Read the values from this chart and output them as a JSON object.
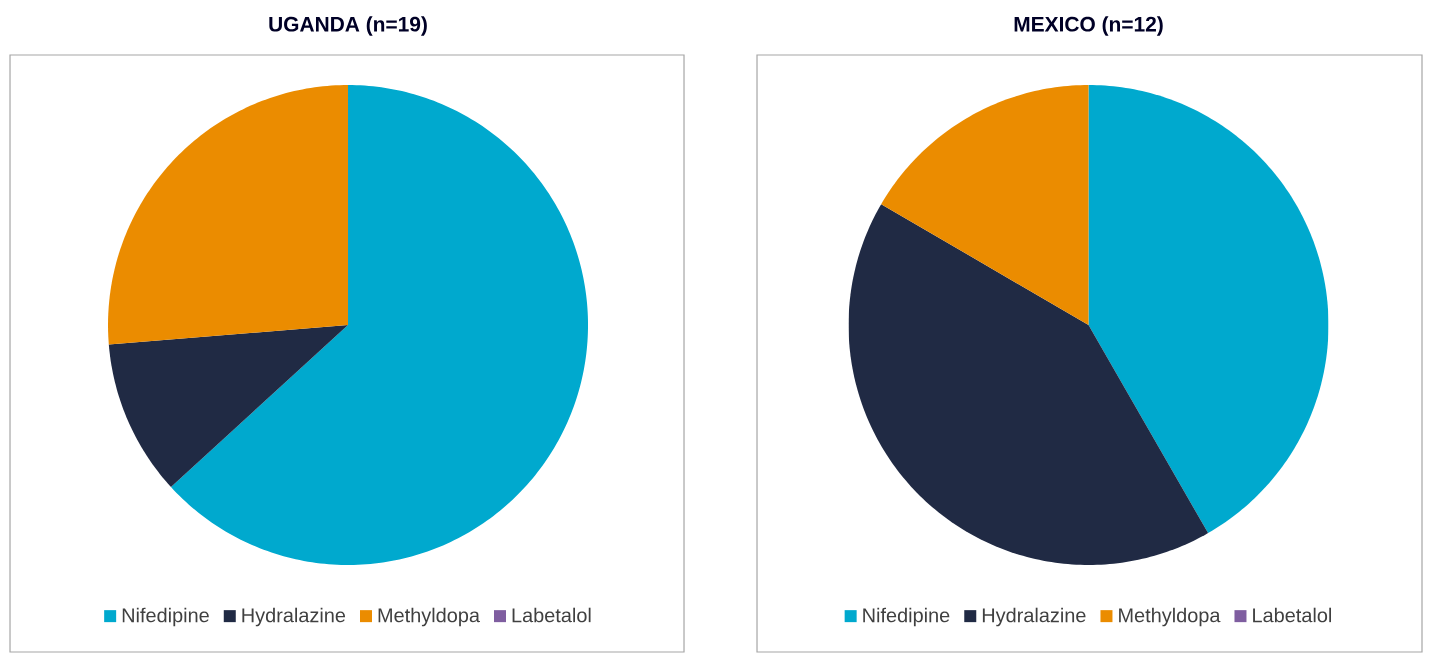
{
  "chart_data": [
    {
      "type": "pie",
      "title": "UGANDA (n=19)",
      "categories": [
        "Nifedipine",
        "Hydralazine",
        "Methyldopa",
        "Labetalol"
      ],
      "values": [
        63.2,
        10.5,
        26.3,
        0
      ],
      "colors": [
        "#00a9ce",
        "#202a44",
        "#eb8c00",
        "#7f5ea0"
      ],
      "legend": "bottom"
    },
    {
      "type": "pie",
      "title": "MEXICO (n=12)",
      "categories": [
        "Nifedipine",
        "Hydralazine",
        "Methyldopa",
        "Labetalol"
      ],
      "values": [
        41.7,
        41.7,
        16.6,
        0
      ],
      "colors": [
        "#00a9ce",
        "#202a44",
        "#eb8c00",
        "#7f5ea0"
      ],
      "legend": "bottom"
    }
  ]
}
